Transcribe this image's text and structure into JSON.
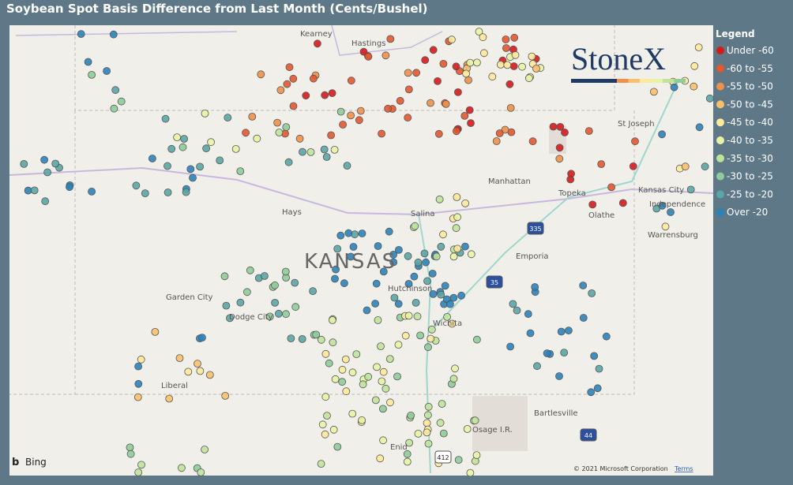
{
  "header": {
    "title": "Soybean Spot Basis Difference from Last Month (Cents/Bushel)"
  },
  "legend": {
    "title": "Legend",
    "items": [
      {
        "label": "Under -60",
        "color": "#d7191c"
      },
      {
        "label": "-60 to -55",
        "color": "#e4572f"
      },
      {
        "label": "-55 to -50",
        "color": "#f0904a"
      },
      {
        "label": "-50 to -45",
        "color": "#f8c06d"
      },
      {
        "label": "-45 to -40",
        "color": "#fde99b"
      },
      {
        "label": "-40 to -35",
        "color": "#e7f3a5"
      },
      {
        "label": "-35 to -30",
        "color": "#bfe39b"
      },
      {
        "label": "-30 to -25",
        "color": "#8fcc9a"
      },
      {
        "label": "-25 to -20",
        "color": "#5aa5a6"
      },
      {
        "label": "Over -20",
        "color": "#2b83ba"
      }
    ]
  },
  "logo": "StoneX",
  "map": {
    "places": [
      "Kearney",
      "Hastings",
      "St Joseph",
      "Manhattan",
      "Topeka",
      "Kansas City",
      "Independence",
      "Olathe",
      "Warrensburg",
      "Hays",
      "Salina",
      "Emporia",
      "Garden City",
      "Dodge City",
      "Hutchinson",
      "Wichita",
      "Liberal",
      "Bartlesville",
      "Osage I.R.",
      "Enid"
    ],
    "state": "KANSAS",
    "shields": [
      "335",
      "35",
      "412",
      "44"
    ],
    "bing": "Bing",
    "copyright": "© 2021 Microsoft Corporation",
    "terms": "Terms"
  }
}
